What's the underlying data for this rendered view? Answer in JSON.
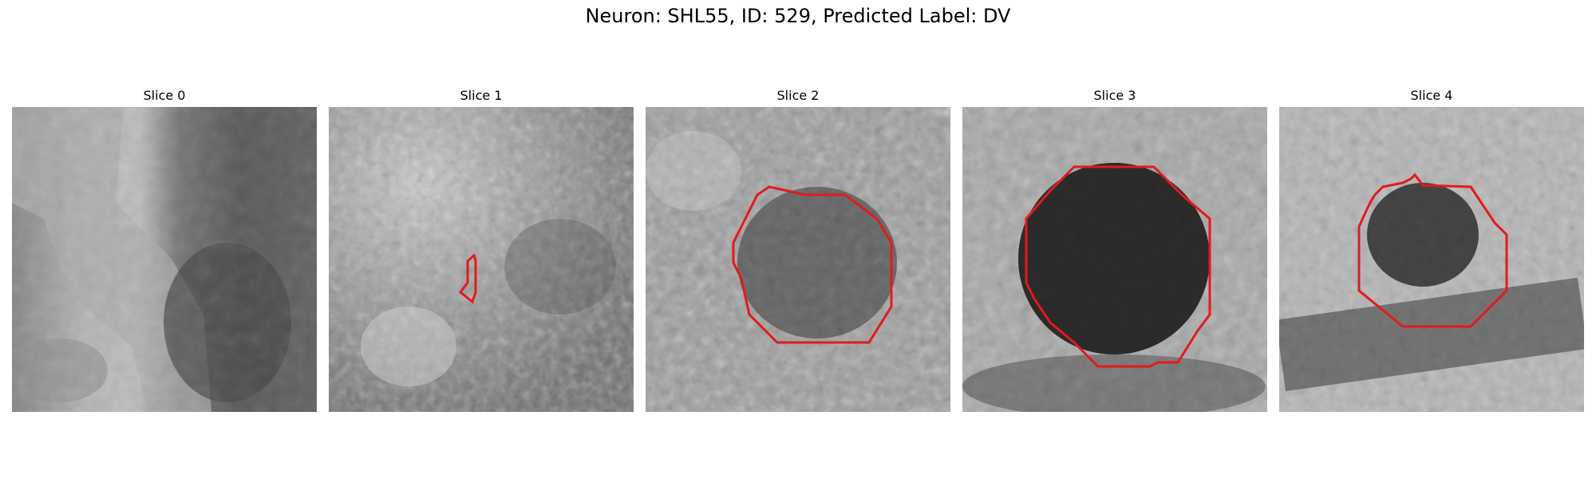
{
  "figure": {
    "title": "Neuron: SHL55, ID: 529, Predicted Label: DV",
    "contour_color": "#e31a1c"
  },
  "panels": [
    {
      "title": "Slice 0",
      "contour_present": false
    },
    {
      "title": "Slice 1",
      "contour_present": true
    },
    {
      "title": "Slice 2",
      "contour_present": true
    },
    {
      "title": "Slice 3",
      "contour_present": true
    },
    {
      "title": "Slice 4",
      "contour_present": true
    }
  ]
}
